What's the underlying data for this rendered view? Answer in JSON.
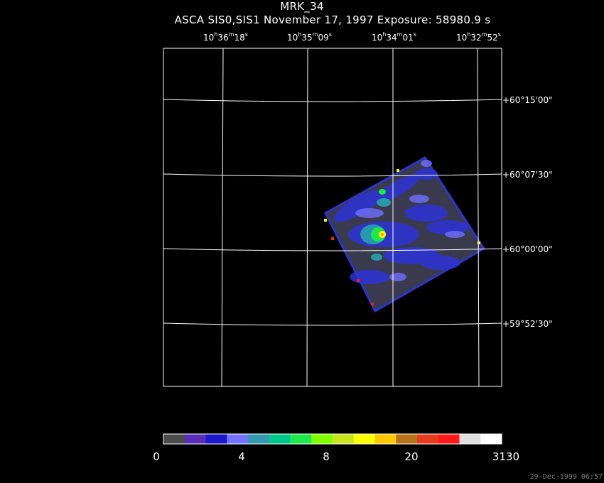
{
  "title": "MRK_34",
  "subtitle": "ASCA SIS0,SIS1 November 17, 1997 Exposure: 58980.9 s",
  "ra_labels": [
    {
      "h": "10",
      "m": "36",
      "s": "18"
    },
    {
      "h": "10",
      "m": "35",
      "s": "09"
    },
    {
      "h": "10",
      "m": "34",
      "s": "01"
    },
    {
      "h": "10",
      "m": "32",
      "s": "52"
    }
  ],
  "dec_labels": [
    "+60°15'00\"",
    "+60°07'30\"",
    "+60°00'00\"",
    "+59°52'30\""
  ],
  "colorbar": {
    "colors": [
      "#4d4d4d",
      "#5a2fb8",
      "#1a1acc",
      "#7373ff",
      "#3399b3",
      "#00c78c",
      "#1ee84a",
      "#7fff00",
      "#c8e61e",
      "#ffff00",
      "#ffc800",
      "#b8731a",
      "#e83a1e",
      "#ff1a1a",
      "#e0e0e0",
      "#ffffff"
    ],
    "tick_labels": [
      "0",
      "4",
      "8",
      "20",
      "3130"
    ]
  },
  "timestamp": "29-Dec-1999 06:57"
}
